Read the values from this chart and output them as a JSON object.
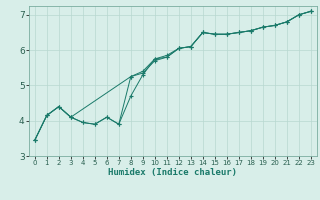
{
  "xlabel": "Humidex (Indice chaleur)",
  "ylabel": "",
  "bg_color": "#d8eee9",
  "grid_color": "#b8d8d0",
  "line_color": "#1a7a6a",
  "xlim": [
    -0.5,
    23.5
  ],
  "ylim": [
    3,
    7.25
  ],
  "yticks": [
    3,
    4,
    5,
    6,
    7
  ],
  "xticks": [
    0,
    1,
    2,
    3,
    4,
    5,
    6,
    7,
    8,
    9,
    10,
    11,
    12,
    13,
    14,
    15,
    16,
    17,
    18,
    19,
    20,
    21,
    22,
    23
  ],
  "line1_x": [
    0,
    1,
    2,
    3,
    4,
    5,
    6,
    7,
    8,
    9,
    10,
    11,
    12,
    13,
    14,
    15,
    16,
    17,
    18,
    19,
    20,
    21,
    22,
    23
  ],
  "line1_y": [
    3.45,
    4.15,
    4.4,
    4.1,
    3.95,
    3.9,
    4.1,
    3.9,
    4.7,
    5.3,
    5.75,
    5.8,
    6.05,
    6.1,
    6.5,
    6.45,
    6.45,
    6.5,
    6.55,
    6.65,
    6.7,
    6.8,
    7.0,
    7.1
  ],
  "line2_x": [
    0,
    1,
    2,
    3,
    8,
    9,
    10,
    11,
    12,
    13,
    14,
    15,
    16,
    17,
    18,
    19,
    20,
    21,
    22,
    23
  ],
  "line2_y": [
    3.45,
    4.15,
    4.4,
    4.1,
    5.25,
    5.4,
    5.75,
    5.85,
    6.05,
    6.1,
    6.5,
    6.45,
    6.45,
    6.5,
    6.55,
    6.65,
    6.7,
    6.8,
    7.0,
    7.1
  ],
  "line3_x": [
    0,
    1,
    2,
    3,
    4,
    5,
    6,
    7,
    8,
    9,
    10,
    11,
    12,
    13,
    14,
    15,
    16,
    17,
    18,
    19,
    20,
    21,
    22,
    23
  ],
  "line3_y": [
    3.45,
    4.15,
    4.4,
    4.1,
    3.95,
    3.9,
    4.1,
    3.9,
    5.25,
    5.35,
    5.7,
    5.8,
    6.05,
    6.1,
    6.5,
    6.45,
    6.45,
    6.5,
    6.55,
    6.65,
    6.7,
    6.8,
    7.0,
    7.1
  ]
}
